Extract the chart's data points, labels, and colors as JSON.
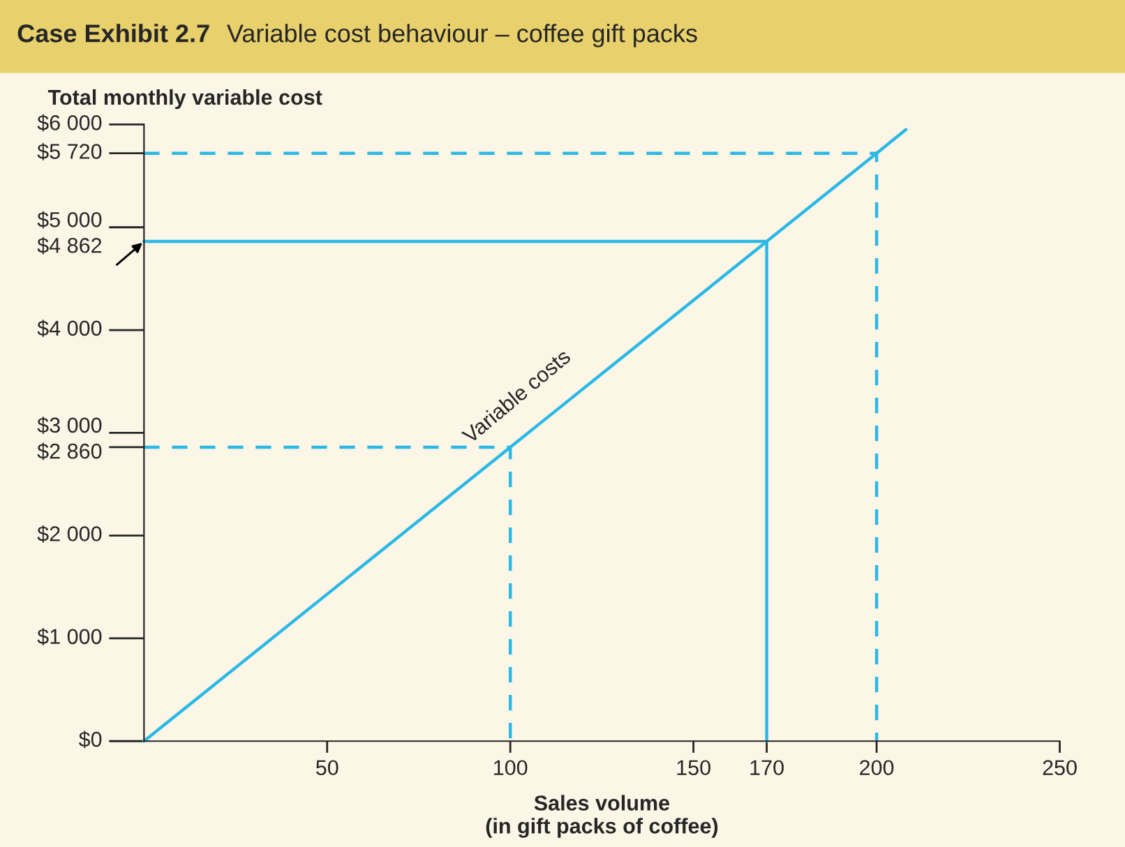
{
  "chart_data": {
    "type": "line",
    "title": "Case Exhibit 2.7",
    "subtitle": "Variable cost behaviour – coffee gift packs",
    "xlabel": "Sales volume\n(in gift packs of coffee)",
    "ylabel": "Total monthly variable cost",
    "xlim": [
      0,
      250
    ],
    "xticks": [
      50,
      100,
      150,
      170,
      200,
      250
    ],
    "ylim": [
      0,
      6000
    ],
    "yticks": [
      {
        "value": 0,
        "label": "$0"
      },
      {
        "value": 1000,
        "label": "$1 000"
      },
      {
        "value": 2000,
        "label": "$2 000"
      },
      {
        "value": 2860,
        "label": "$2 860"
      },
      {
        "value": 3000,
        "label": "$3 000"
      },
      {
        "value": 4000,
        "label": "$4 000"
      },
      {
        "value": 4862,
        "label": "$4 862"
      },
      {
        "value": 5000,
        "label": "$5 000"
      },
      {
        "value": 5720,
        "label": "$5 720"
      },
      {
        "value": 6000,
        "label": "$6 000"
      }
    ],
    "series": [
      {
        "color": "#2bb8e6",
        "x": [
          0,
          100,
          170,
          200,
          208
        ],
        "values": [
          0,
          2860,
          4862,
          5720,
          5950
        ],
        "line_style": "solid"
      },
      {
        "color": "#2bb8e6",
        "x": [
          0,
          100,
          100
        ],
        "values": [
          2860,
          2860,
          0
        ],
        "line_style": "dashed"
      },
      {
        "color": "#2bb8e6",
        "x": [
          0,
          170,
          170
        ],
        "values": [
          4862,
          4862,
          0
        ],
        "line_style": "solid"
      },
      {
        "color": "#2bb8e6",
        "x": [
          0,
          200,
          200
        ],
        "values": [
          5720,
          5720,
          0
        ],
        "line_style": "dashed"
      }
    ],
    "annotations": [
      "Variable costs"
    ],
    "grid": false,
    "legend": false
  }
}
